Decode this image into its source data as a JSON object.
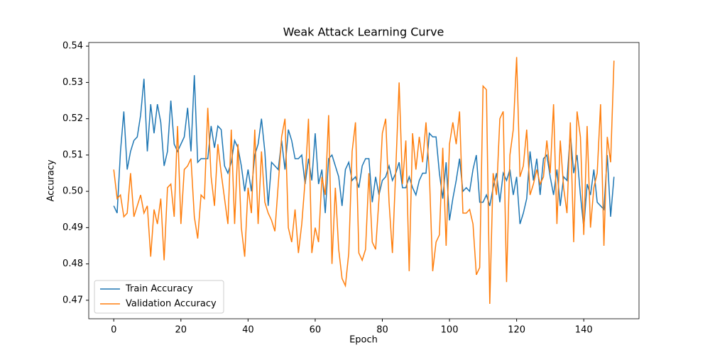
{
  "chart_data": {
    "type": "line",
    "title": "Weak Attack Learning Curve",
    "x_label": "Epoch",
    "y_label": "Accuracy",
    "x": [
      0,
      1,
      2,
      3,
      4,
      5,
      6,
      7,
      8,
      9,
      10,
      11,
      12,
      13,
      14,
      15,
      16,
      17,
      18,
      19,
      20,
      21,
      22,
      23,
      24,
      25,
      26,
      27,
      28,
      29,
      30,
      31,
      32,
      33,
      34,
      35,
      36,
      37,
      38,
      39,
      40,
      41,
      42,
      43,
      44,
      45,
      46,
      47,
      48,
      49,
      50,
      51,
      52,
      53,
      54,
      55,
      56,
      57,
      58,
      59,
      60,
      61,
      62,
      63,
      64,
      65,
      66,
      67,
      68,
      69,
      70,
      71,
      72,
      73,
      74,
      75,
      76,
      77,
      78,
      79,
      80,
      81,
      82,
      83,
      84,
      85,
      86,
      87,
      88,
      89,
      90,
      91,
      92,
      93,
      94,
      95,
      96,
      97,
      98,
      99,
      100,
      101,
      102,
      103,
      104,
      105,
      106,
      107,
      108,
      109,
      110,
      111,
      112,
      113,
      114,
      115,
      116,
      117,
      118,
      119,
      120,
      121,
      122,
      123,
      124,
      125,
      126,
      127,
      128,
      129,
      130,
      131,
      132,
      133,
      134,
      135,
      136,
      137,
      138,
      139,
      140,
      141,
      142,
      143,
      144,
      145,
      146,
      147,
      148,
      149
    ],
    "series": [
      {
        "name": "Train Accuracy",
        "color": "#1f77b4",
        "values": [
          0.496,
          0.494,
          0.511,
          0.522,
          0.506,
          0.511,
          0.514,
          0.515,
          0.521,
          0.531,
          0.511,
          0.524,
          0.516,
          0.524,
          0.519,
          0.507,
          0.511,
          0.525,
          0.513,
          0.511,
          0.513,
          0.515,
          0.523,
          0.511,
          0.532,
          0.508,
          0.509,
          0.509,
          0.509,
          0.518,
          0.512,
          0.518,
          0.517,
          0.507,
          0.505,
          0.508,
          0.514,
          0.512,
          0.507,
          0.5,
          0.506,
          0.5,
          0.51,
          0.513,
          0.52,
          0.511,
          0.496,
          0.508,
          0.507,
          0.506,
          0.514,
          0.506,
          0.517,
          0.514,
          0.509,
          0.509,
          0.51,
          0.502,
          0.509,
          0.503,
          0.516,
          0.502,
          0.506,
          0.494,
          0.509,
          0.51,
          0.507,
          0.504,
          0.496,
          0.506,
          0.508,
          0.503,
          0.504,
          0.501,
          0.507,
          0.509,
          0.509,
          0.497,
          0.504,
          0.499,
          0.503,
          0.504,
          0.507,
          0.503,
          0.505,
          0.508,
          0.501,
          0.501,
          0.504,
          0.501,
          0.499,
          0.503,
          0.505,
          0.505,
          0.516,
          0.515,
          0.515,
          0.505,
          0.498,
          0.508,
          0.492,
          0.498,
          0.503,
          0.509,
          0.5,
          0.501,
          0.5,
          0.506,
          0.51,
          0.497,
          0.497,
          0.499,
          0.496,
          0.501,
          0.505,
          0.497,
          0.505,
          0.503,
          0.506,
          0.499,
          0.504,
          0.491,
          0.494,
          0.498,
          0.511,
          0.503,
          0.509,
          0.499,
          0.509,
          0.51,
          0.504,
          0.499,
          0.506,
          0.496,
          0.504,
          0.503,
          0.516,
          0.505,
          0.51,
          0.499,
          0.49,
          0.502,
          0.499,
          0.506,
          0.497,
          0.496,
          0.495,
          0.51,
          0.493,
          0.504
        ]
      },
      {
        "name": "Validation Accuracy",
        "color": "#ff7f0e",
        "values": [
          0.506,
          0.498,
          0.499,
          0.493,
          0.494,
          0.505,
          0.493,
          0.496,
          0.499,
          0.494,
          0.496,
          0.482,
          0.495,
          0.491,
          0.498,
          0.481,
          0.501,
          0.502,
          0.493,
          0.518,
          0.491,
          0.506,
          0.507,
          0.509,
          0.493,
          0.487,
          0.499,
          0.498,
          0.523,
          0.504,
          0.496,
          0.513,
          0.505,
          0.498,
          0.491,
          0.517,
          0.491,
          0.513,
          0.49,
          0.482,
          0.501,
          0.494,
          0.517,
          0.491,
          0.511,
          0.497,
          0.494,
          0.492,
          0.489,
          0.502,
          0.515,
          0.52,
          0.49,
          0.486,
          0.495,
          0.483,
          0.491,
          0.503,
          0.52,
          0.483,
          0.49,
          0.486,
          0.504,
          0.499,
          0.521,
          0.48,
          0.501,
          0.484,
          0.476,
          0.474,
          0.483,
          0.511,
          0.519,
          0.483,
          0.481,
          0.484,
          0.505,
          0.486,
          0.484,
          0.498,
          0.516,
          0.52,
          0.497,
          0.483,
          0.506,
          0.53,
          0.502,
          0.514,
          0.478,
          0.516,
          0.506,
          0.515,
          0.508,
          0.519,
          0.505,
          0.478,
          0.486,
          0.488,
          0.512,
          0.485,
          0.513,
          0.519,
          0.513,
          0.522,
          0.494,
          0.494,
          0.495,
          0.491,
          0.477,
          0.479,
          0.529,
          0.528,
          0.469,
          0.505,
          0.499,
          0.52,
          0.522,
          0.475,
          0.51,
          0.517,
          0.537,
          0.504,
          0.507,
          0.517,
          0.499,
          0.502,
          0.506,
          0.502,
          0.504,
          0.514,
          0.505,
          0.524,
          0.491,
          0.514,
          0.501,
          0.494,
          0.519,
          0.486,
          0.522,
          0.515,
          0.488,
          0.518,
          0.49,
          0.501,
          0.505,
          0.524,
          0.485,
          0.515,
          0.508,
          0.536
        ]
      }
    ],
    "xlim": [
      -7.45,
      156.45
    ],
    "ylim": [
      0.4649,
      0.541
    ],
    "xticks": [
      0,
      20,
      40,
      60,
      80,
      100,
      120,
      140
    ],
    "yticks": [
      0.47,
      0.48,
      0.49,
      {
        "value": 0.5,
        "label": "0.50"
      },
      0.51,
      0.52,
      0.53,
      0.54
    ],
    "legend": "lower left"
  }
}
